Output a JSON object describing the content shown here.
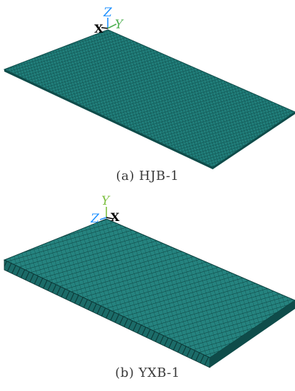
{
  "figure": {
    "panels": [
      {
        "caption": "(a) HJB-1",
        "triad": {
          "z": "Z",
          "x": "X",
          "y": "Y"
        },
        "colors": {
          "mesh": "#1f7f7b",
          "mesh_dark": "#0f4c4a",
          "z_axis": "#1e90ff",
          "y_axis": "#4caf50",
          "x_axis": "#000000"
        }
      },
      {
        "caption": "(b) YXB-1",
        "triad": {
          "y": "Y",
          "z": "Z",
          "x": "X"
        },
        "colors": {
          "mesh": "#227f7c",
          "mesh_dark": "#0c3f3d",
          "z_axis": "#1e90ff",
          "y_axis": "#7cbf3f",
          "x_axis": "#000000"
        }
      }
    ]
  }
}
